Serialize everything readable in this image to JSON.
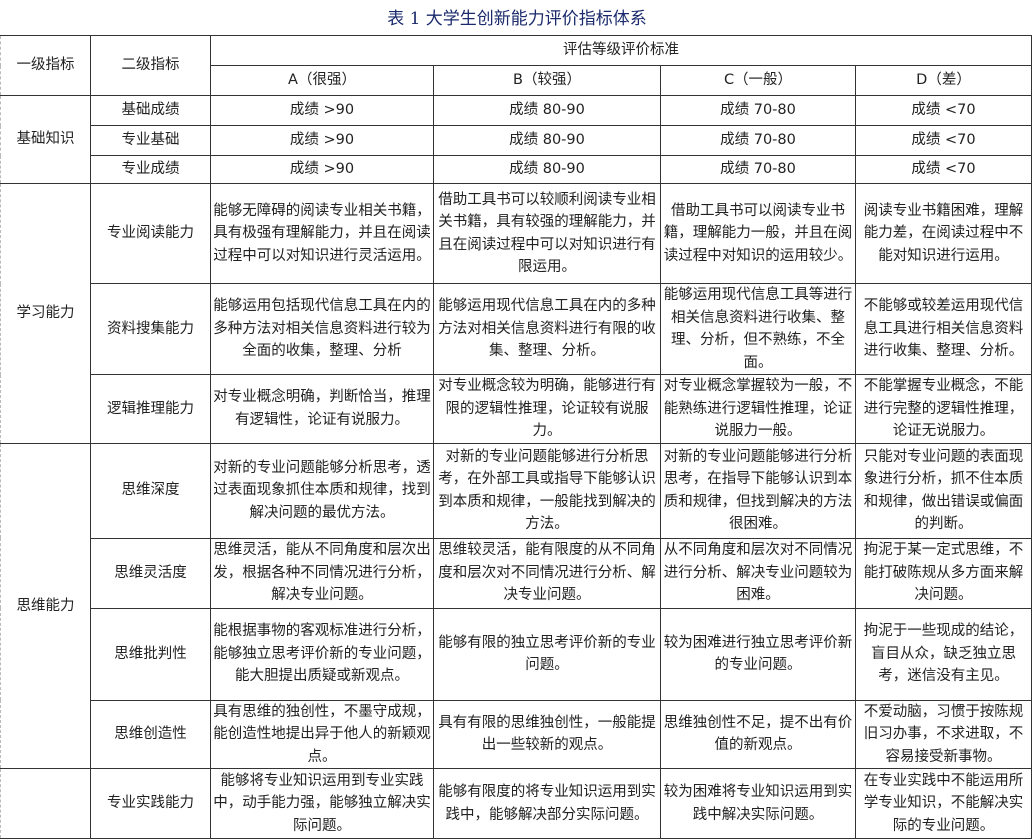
{
  "title": "表  1  大学生创新能力评价指标体系",
  "header": {
    "level1": "一级指标",
    "level2": "二级指标",
    "criteria": "评估等级评价标准",
    "grades": [
      "A（很强）",
      "B（较强）",
      "C（一般）",
      "D（差）"
    ]
  },
  "groups": [
    {
      "name": "基础知识",
      "items": [
        {
          "name": "基础成绩",
          "criteria": [
            "成绩 >90",
            "成绩 80-90",
            "成绩 70-80",
            "成绩 <70"
          ]
        },
        {
          "name": "专业基础",
          "criteria": [
            "成绩 >90",
            "成绩 80-90",
            "成绩 70-80",
            "成绩 <70"
          ]
        },
        {
          "name": "专业成绩",
          "criteria": [
            "成绩 >90",
            "成绩 80-90",
            "成绩 70-80",
            "成绩 <70"
          ]
        }
      ]
    },
    {
      "name": "学习能力",
      "items": [
        {
          "name": "专业阅读能力",
          "criteria": [
            "能够无障碍的阅读专业相关书籍，具有极强有理解能力，并且在阅读过程中可以对知识进行灵活运用。",
            "借助工具书可以较顺利阅读专业相关书籍，具有较强的理解能力，并且在阅读过程中可以对知识进行有限运用。",
            "借助工具书可以阅读专业书籍，理解能力一般，并且在阅读过程中对知识的运用较少。",
            "阅读专业书籍困难，理解能力差，在阅读过程中不能对知识进行运用。"
          ]
        },
        {
          "name": "资料搜集能力",
          "criteria": [
            "能够运用包括现代信息工具在内的多种方法对相关信息资料进行较为全面的收集，整理、分析",
            "能够运用现代信息工具在内的多种方法对相关信息资料进行有限的收集、整理、分析。",
            "能够运用现代信息工具等进行相关信息资料进行收集、整理、分析，但不熟练，不全面。",
            "不能够或较差运用现代信息工具进行相关信息资料进行收集、整理、分析。"
          ]
        },
        {
          "name": "逻辑推理能力",
          "criteria": [
            "对专业概念明确，判断恰当，推理有逻辑性，论证有说服力。",
            "对专业概念较为明确，能够进行有限的逻辑性推理，论证较有说服力。",
            "对专业概念掌握较为一般，不能熟练进行逻辑性推理，论证说服力一般。",
            "不能掌握专业概念，不能进行完整的逻辑性推理，论证无说服力。"
          ]
        }
      ]
    },
    {
      "name": "思维能力",
      "items": [
        {
          "name": "思维深度",
          "criteria": [
            "对新的专业问题能够分析思考，透过表面现象抓住本质和规律，找到解决问题的最优方法。",
            "对新的专业问题能够进行分析思考，在外部工具或指导下能够认识到本质和规律，一般能找到解决的方法。",
            "对新的专业问题能够进行分析思考，在指导下能够认识到本质和规律，但找到解决的方法很困难。",
            "只能对专业问题的表面现象进行分析，抓不住本质和规律，做出错误或偏面的判断。"
          ]
        },
        {
          "name": "思维灵活度",
          "criteria": [
            "思维灵活，能从不同角度和层次出发，根据各种不同情况进行分析，解决专业问题。",
            "思维较灵活，能有限度的从不同角度和层次对不同情况进行分析、解决专业问题。",
            "从不同角度和层次对不同情况进行分析、解决专业问题较为困难。",
            "拘泥于某一定式思维，不能打破陈规从多方面来解决问题。"
          ]
        },
        {
          "name": "思维批判性",
          "criteria": [
            "能根据事物的客观标准进行分析，能够独立思考评价新的专业问题，能大胆提出质疑或新观点。",
            "能够有限的独立思考评价新的专业问题。",
            "较为困难进行独立思考评价新的专业问题。",
            "拘泥于一些现成的结论，盲目从众，缺乏独立思考，迷信没有主见。"
          ]
        },
        {
          "name": "思维创造性",
          "criteria": [
            "具有思维的独创性，不墨守成规，能创造性地提出异于他人的新颖观点。",
            "具有有限的思维独创性，一般能提出一些较新的观点。",
            "思维独创性不足，提不出有价值的新观点。",
            "不爱动脑，习惯于按陈规旧习办事，不求进取，不容易接受新事物。"
          ]
        }
      ]
    },
    {
      "name": "",
      "items": [
        {
          "name": "专业实践能力",
          "criteria": [
            "能够将专业知识运用到专业实践中，动手能力强，能够独立解决实际问题。",
            "能够有限度的将专业知识运用到实践中，能够解决部分实际问题。",
            "较为困难将专业知识运用到实践中解决实际问题。",
            "在专业实践中不能运用所学专业知识，不能解决实际的专业问题。"
          ]
        }
      ]
    }
  ]
}
